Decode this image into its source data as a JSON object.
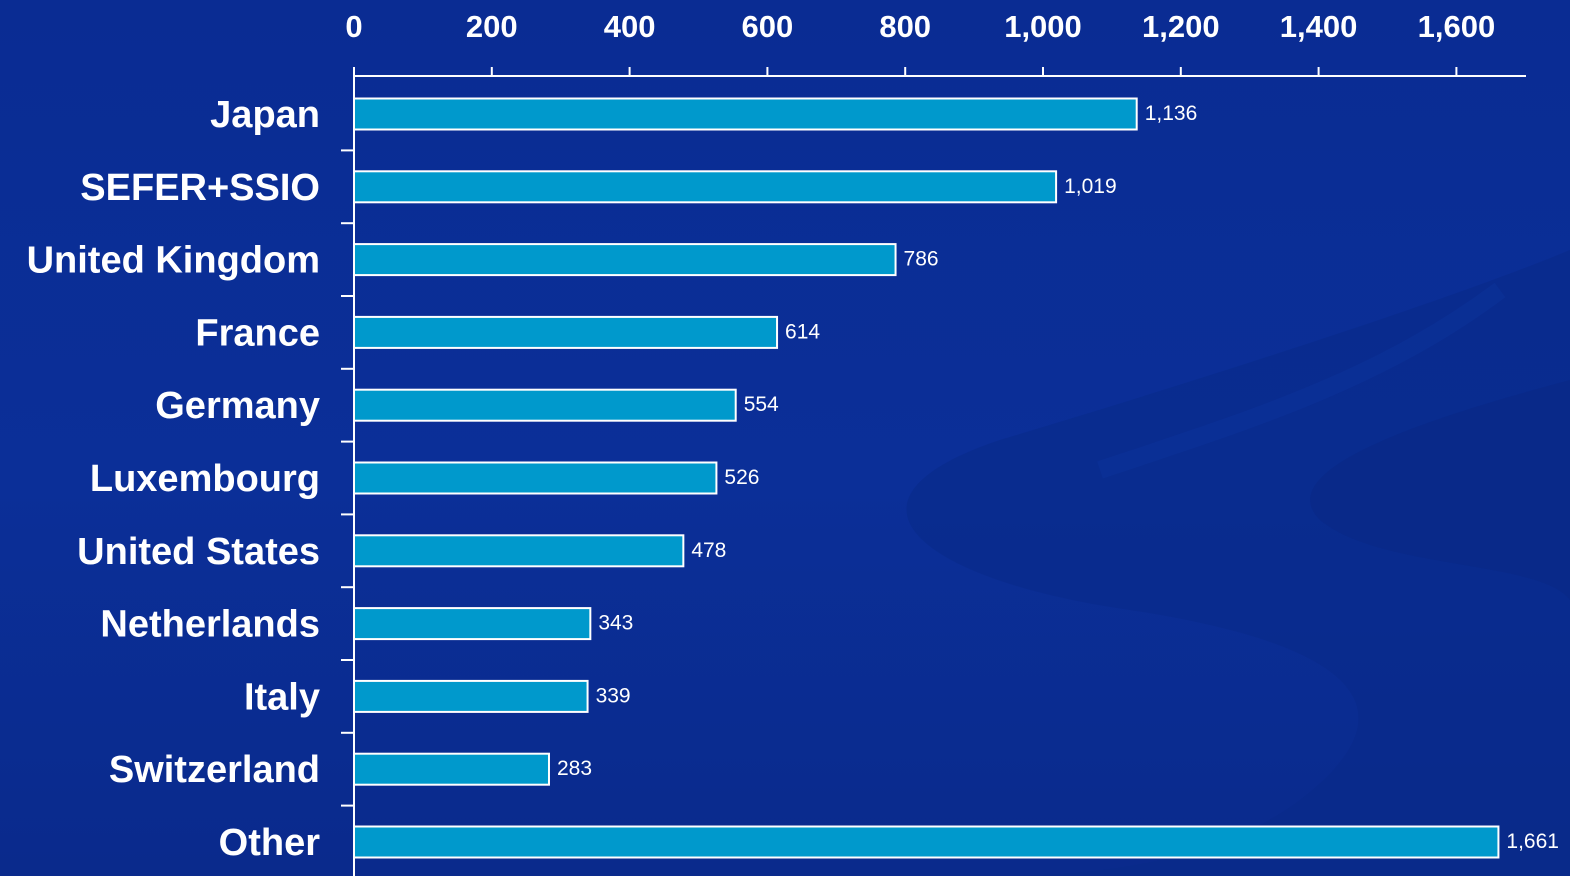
{
  "chart_data": {
    "type": "bar",
    "orientation": "horizontal",
    "categories": [
      "Japan",
      "SEFER+SSIO",
      "United Kingdom",
      "France",
      "Germany",
      "Luxembourg",
      "United States",
      "Netherlands",
      "Italy",
      "Switzerland",
      "Other"
    ],
    "values": [
      1136,
      1019,
      786,
      614,
      554,
      526,
      478,
      343,
      339,
      283,
      1661
    ],
    "value_labels": [
      "1,136",
      "1,019",
      "786",
      "614",
      "554",
      "526",
      "478",
      "343",
      "339",
      "283",
      "1,661"
    ],
    "xticks": [
      0,
      200,
      400,
      600,
      800,
      1000,
      1200,
      1400,
      1600
    ],
    "xtick_labels": [
      "0",
      "200",
      "400",
      "600",
      "800",
      "1,000",
      "1,200",
      "1,400",
      "1,600"
    ],
    "xlim": [
      0,
      1700
    ],
    "axis_position": "top",
    "grid": false,
    "title": "",
    "xlabel": "",
    "ylabel": ""
  },
  "colors": {
    "background": "#0a2d94",
    "bar_fill": "#0099cc",
    "bar_edge": "#ffffff",
    "text": "#ffffff",
    "swirl": "#08237a"
  }
}
